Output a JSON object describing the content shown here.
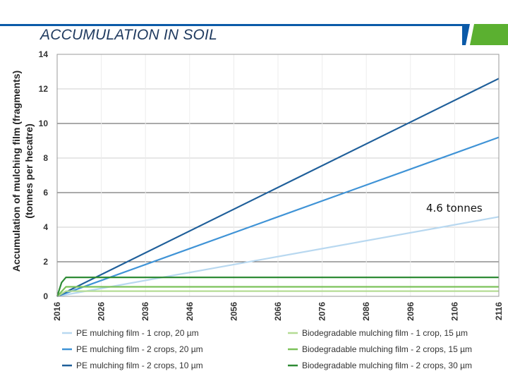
{
  "header": {
    "title": "ACCUMULATION IN SOIL"
  },
  "colors": {
    "banner_blue": "#0b5aa8",
    "banner_green": "#5bb030"
  },
  "chart_data": {
    "type": "line",
    "ylabel": "Accumulation of mulching film (fragments) (tonnes per hecatre)",
    "xlabel": "",
    "xlim": [
      2016,
      2116
    ],
    "ylim": [
      0,
      14
    ],
    "x_ticks": [
      "2016",
      "2026",
      "2036",
      "2046",
      "2056",
      "2066",
      "2076",
      "2086",
      "2096",
      "2106",
      "2116"
    ],
    "y_ticks": [
      "0",
      "2",
      "4",
      "6",
      "8",
      "10",
      "12",
      "14"
    ],
    "annotation": "4.6 tonnes",
    "series": [
      {
        "name": "PE mulching film - 1 crop, 20 µm",
        "color": "#b8d8f0",
        "x": [
          2016,
          2116
        ],
        "y": [
          0,
          4.6
        ]
      },
      {
        "name": "PE mulching film - 2 crops, 20 µm",
        "color": "#3f93d6",
        "x": [
          2016,
          2116
        ],
        "y": [
          0,
          9.2
        ]
      },
      {
        "name": "PE mulching film - 2 crops, 10 µm",
        "color": "#1f5f9a",
        "x": [
          2016,
          2116
        ],
        "y": [
          0,
          12.6
        ]
      },
      {
        "name": "Biodegradable mulching film - 1 crop, 15 µm",
        "color": "#b5dc95",
        "x": [
          2016,
          2018,
          2116
        ],
        "y": [
          0,
          0.3,
          0.3
        ]
      },
      {
        "name": "Biodegradable mulching film - 2 crops, 15 µm",
        "color": "#7cc25a",
        "x": [
          2016,
          2018,
          2116
        ],
        "y": [
          0,
          0.55,
          0.55
        ]
      },
      {
        "name": "Biodegradable mulching film - 2 crops, 30 µm",
        "color": "#2e8b35",
        "x": [
          2016,
          2017,
          2018,
          2116
        ],
        "y": [
          0,
          0.8,
          1.1,
          1.1
        ]
      }
    ]
  }
}
